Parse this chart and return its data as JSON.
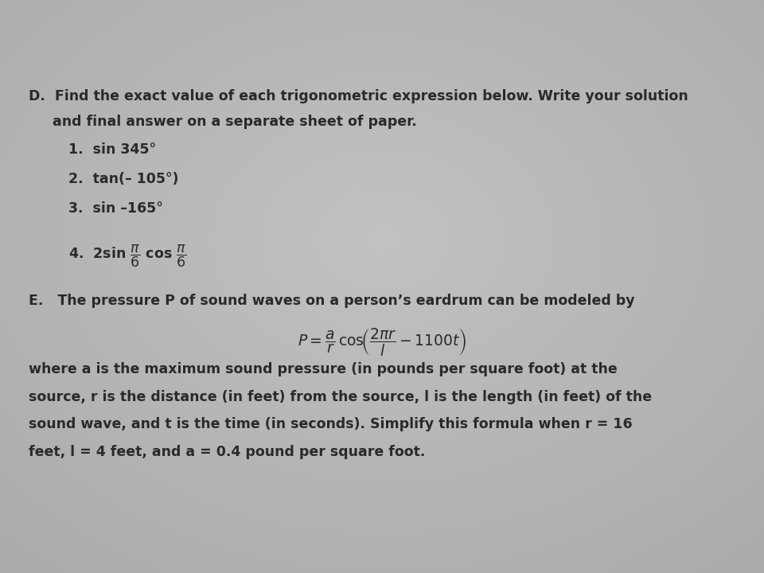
{
  "bg_color": "#b5b5b5",
  "text_color": "#2a2a2a",
  "font_size_main": 12.5,
  "font_size_formula": 13.5,
  "D_heading_line1": "D.  Find the exact value of each trigonometric expression below. Write your solution",
  "D_heading_line2": "     and final answer on a separate sheet of paper.",
  "item1": "1.  sin 345°",
  "item2": "2.  tan(– 105°)",
  "item3": "3.  sin –165°",
  "E_heading": "E.   The pressure P of sound waves on a person’s eardrum can be modeled by",
  "para_E_line1": "where a is the maximum sound pressure (in pounds per square foot) at the",
  "para_E_line2": "source, r is the distance (in feet) from the source, l is the length (in feet) of the",
  "para_E_line3": "sound wave, and t is the time (in seconds). Simplify this formula when r = 16",
  "para_E_line4": "feet, l = 4 feet, and a = 0.4 pound per square foot."
}
